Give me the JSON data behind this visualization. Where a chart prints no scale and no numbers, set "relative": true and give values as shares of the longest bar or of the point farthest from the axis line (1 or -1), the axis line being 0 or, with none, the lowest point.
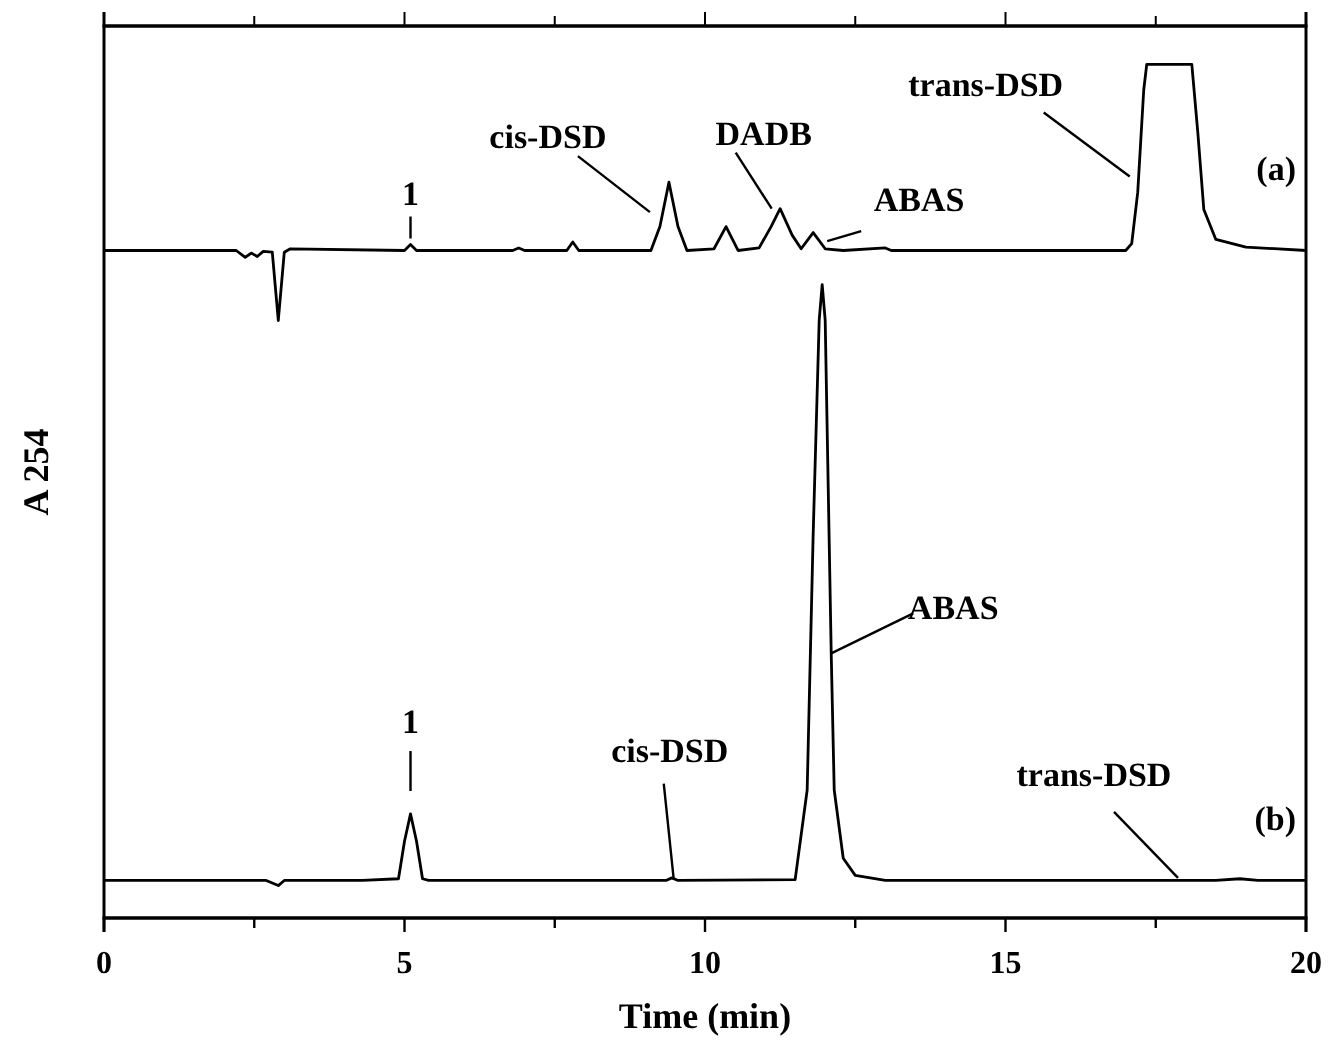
{
  "chart_data": {
    "type": "line",
    "relative": true,
    "xlabel": "Time (min)",
    "ylabel": "A 254",
    "xlim": [
      0,
      20
    ],
    "xticks": [
      0,
      {
        "value": 2.5,
        "label": null
      },
      5,
      {
        "value": 7.5,
        "label": null
      },
      10,
      {
        "value": 12.5,
        "label": null
      },
      15,
      {
        "value": 17.5,
        "label": null
      },
      20
    ],
    "grid": false,
    "marker": "none",
    "line_style": "solid",
    "series": [
      {
        "name": "(a)",
        "color": "#000000",
        "x": [
          0,
          2.2,
          2.35,
          2.45,
          2.55,
          2.65,
          2.8,
          2.9,
          3.0,
          3.1,
          5.0,
          5.1,
          5.2,
          6.8,
          6.9,
          7.0,
          7.7,
          7.8,
          7.9,
          9.1,
          9.25,
          9.4,
          9.55,
          9.7,
          10.15,
          10.35,
          10.55,
          10.9,
          11.1,
          11.25,
          11.45,
          11.6,
          11.8,
          12.0,
          12.3,
          13,
          13.1,
          17.0,
          17.1,
          17.2,
          17.3,
          17.35,
          18.1,
          18.2,
          18.3,
          18.5,
          19,
          20
        ],
        "values": [
          0.782,
          0.782,
          0.774,
          0.779,
          0.775,
          0.781,
          0.78,
          0.7,
          0.78,
          0.784,
          0.782,
          0.789,
          0.782,
          0.782,
          0.785,
          0.782,
          0.782,
          0.792,
          0.782,
          0.782,
          0.81,
          0.862,
          0.81,
          0.782,
          0.784,
          0.81,
          0.782,
          0.785,
          0.81,
          0.831,
          0.8,
          0.784,
          0.803,
          0.784,
          0.782,
          0.785,
          0.782,
          0.782,
          0.79,
          0.85,
          0.97,
          1.0,
          1.0,
          0.92,
          0.83,
          0.795,
          0.786,
          0.782
        ]
      },
      {
        "name": "(b)",
        "color": "#000000",
        "x": [
          0,
          2.7,
          2.9,
          3.0,
          4.3,
          4.9,
          5.0,
          5.1,
          5.2,
          5.3,
          5.4,
          9.35,
          9.45,
          9.55,
          11.5,
          11.7,
          11.8,
          11.9,
          11.95,
          12.0,
          12.1,
          12.15,
          12.3,
          12.5,
          13,
          18.5,
          18.9,
          19.2,
          20
        ],
        "values": [
          0.044,
          0.044,
          0.038,
          0.044,
          0.044,
          0.046,
          0.09,
          0.122,
          0.09,
          0.046,
          0.044,
          0.044,
          0.047,
          0.044,
          0.045,
          0.15,
          0.45,
          0.7,
          0.742,
          0.7,
          0.31,
          0.15,
          0.07,
          0.05,
          0.044,
          0.044,
          0.046,
          0.044,
          0.044
        ]
      }
    ],
    "annotations": [
      {
        "text": "1",
        "x": 5.1,
        "y": 0.789
      },
      {
        "text": "cis-DSD",
        "x": 9.15,
        "y": 0.827
      },
      {
        "text": "DADB",
        "x": 11.11,
        "y": 0.831
      },
      {
        "text": "ABAS",
        "x": 11.9,
        "y": 0.793
      },
      {
        "text": "trans-DSD",
        "x": 17.2,
        "y": 0.85
      },
      {
        "text": "1",
        "x": 5.1,
        "y": 0.13
      },
      {
        "text": "cis-DSD",
        "x": 9.48,
        "y": 0.045
      },
      {
        "text": "ABAS",
        "x": 12.1,
        "y": 0.31
      },
      {
        "text": "trans-DSD",
        "x": 17.87,
        "y": 0.047
      }
    ]
  }
}
